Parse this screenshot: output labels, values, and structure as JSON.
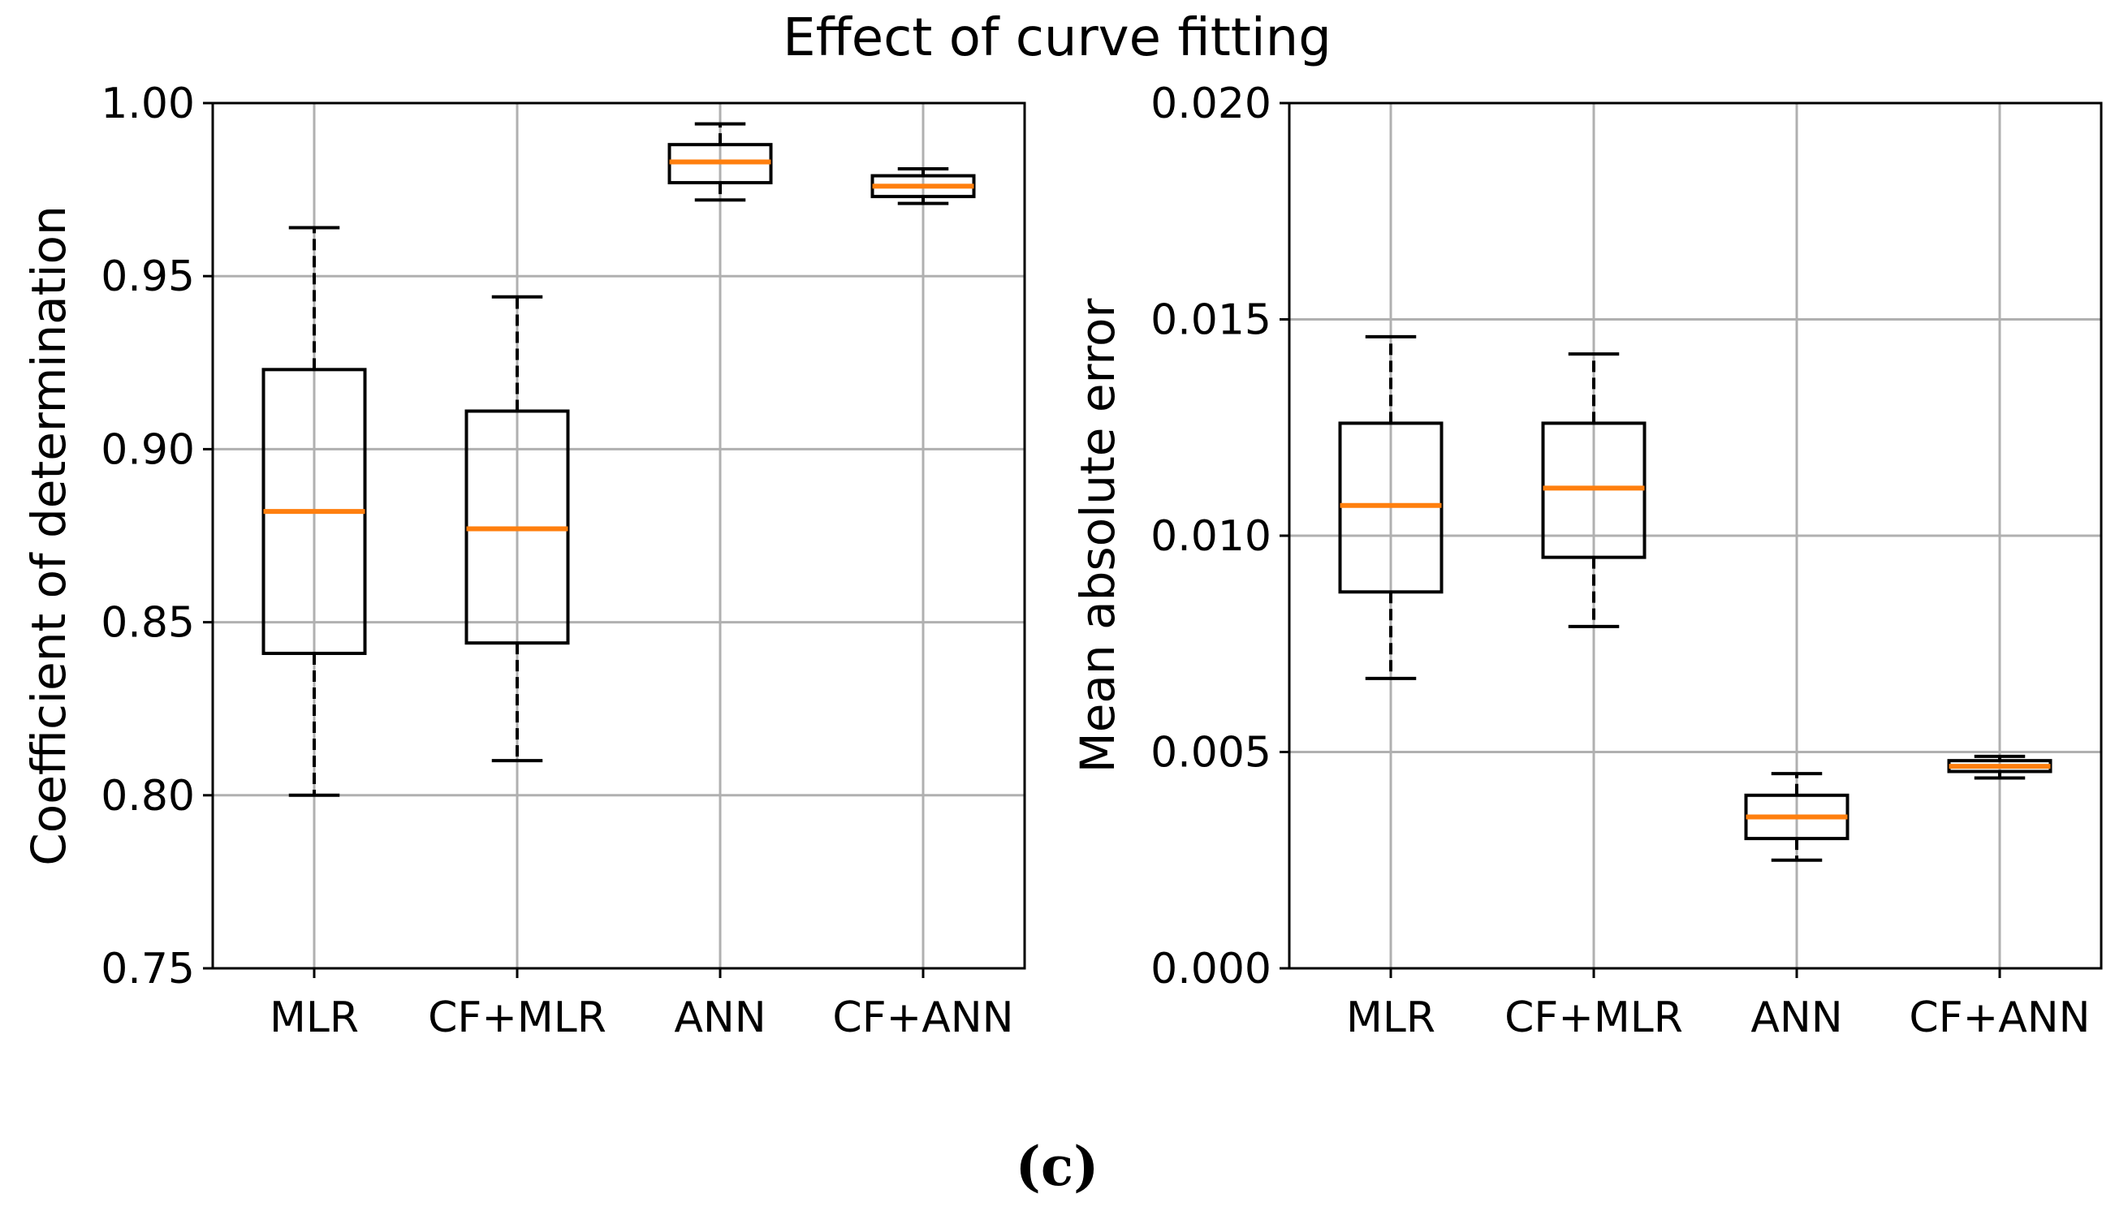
{
  "figure": {
    "suptitle": "Effect of curve fitting",
    "caption": "(c)"
  },
  "colors": {
    "median": "#ff7f0e",
    "box": "#000000",
    "grid": "#b0b0b0"
  },
  "chart_data": [
    {
      "type": "boxplot",
      "title": "",
      "xlabel": "",
      "ylabel": "Coefficient of determination",
      "categories": [
        "MLR",
        "CF+MLR",
        "ANN",
        "CF+ANN"
      ],
      "ylim": [
        0.75,
        1.0
      ],
      "yticks": [
        0.75,
        0.8,
        0.85,
        0.9,
        0.95,
        1.0
      ],
      "ytick_labels": [
        "0.75",
        "0.80",
        "0.85",
        "0.90",
        "0.95",
        "1.00"
      ],
      "grid": true,
      "boxes": [
        {
          "label": "MLR",
          "whislo": 0.8,
          "q1": 0.841,
          "med": 0.882,
          "q3": 0.923,
          "whishi": 0.964
        },
        {
          "label": "CF+MLR",
          "whislo": 0.81,
          "q1": 0.844,
          "med": 0.877,
          "q3": 0.911,
          "whishi": 0.944
        },
        {
          "label": "ANN",
          "whislo": 0.972,
          "q1": 0.977,
          "med": 0.983,
          "q3": 0.988,
          "whishi": 0.994
        },
        {
          "label": "CF+ANN",
          "whislo": 0.971,
          "q1": 0.973,
          "med": 0.976,
          "q3": 0.979,
          "whishi": 0.981
        }
      ]
    },
    {
      "type": "boxplot",
      "title": "",
      "xlabel": "",
      "ylabel": "Mean absolute error",
      "categories": [
        "MLR",
        "CF+MLR",
        "ANN",
        "CF+ANN"
      ],
      "ylim": [
        0.0,
        0.02
      ],
      "yticks": [
        0.0,
        0.005,
        0.01,
        0.015,
        0.02
      ],
      "ytick_labels": [
        "0.000",
        "0.005",
        "0.010",
        "0.015",
        "0.020"
      ],
      "grid": true,
      "boxes": [
        {
          "label": "MLR",
          "whislo": 0.0067,
          "q1": 0.0087,
          "med": 0.0107,
          "q3": 0.0126,
          "whishi": 0.0146
        },
        {
          "label": "CF+MLR",
          "whislo": 0.0079,
          "q1": 0.0095,
          "med": 0.0111,
          "q3": 0.0126,
          "whishi": 0.0142
        },
        {
          "label": "ANN",
          "whislo": 0.0025,
          "q1": 0.003,
          "med": 0.0035,
          "q3": 0.004,
          "whishi": 0.0045
        },
        {
          "label": "CF+ANN",
          "whislo": 0.0044,
          "q1": 0.00455,
          "med": 0.00467,
          "q3": 0.0048,
          "whishi": 0.0049
        }
      ]
    }
  ]
}
